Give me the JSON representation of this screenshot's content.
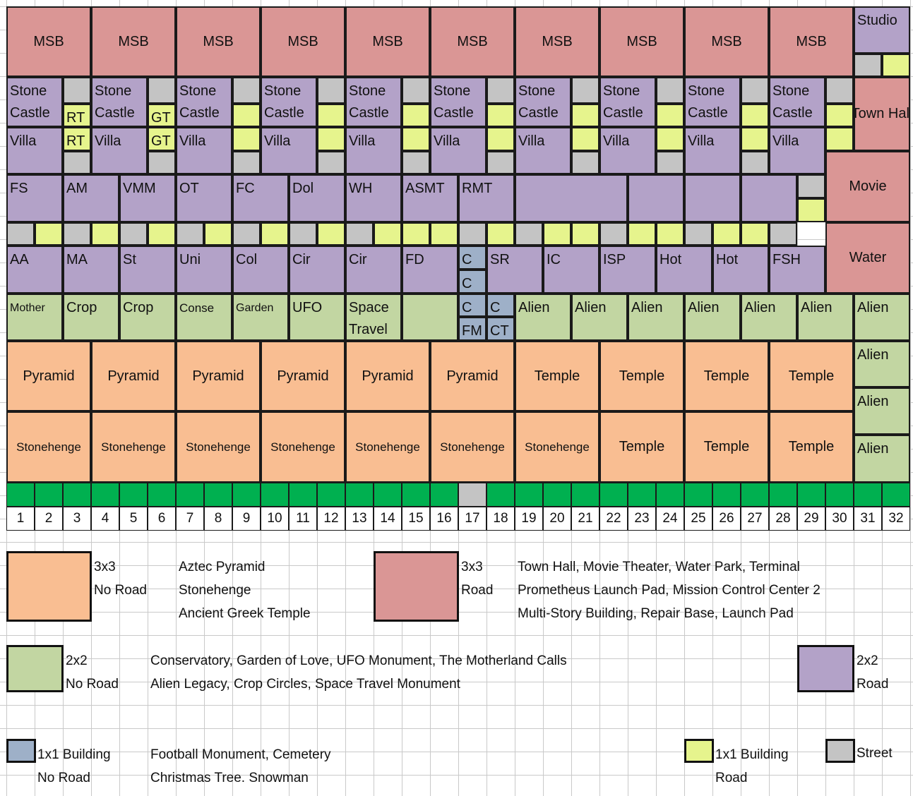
{
  "colors": {
    "orange_3x3_no_road": "#f9be92",
    "red_3x3_road": "#da9695",
    "green_2x2_no_road": "#c2d6a2",
    "purple_2x2_road": "#b3a2c8",
    "blue_1x1_no_road": "#9eb0c8",
    "yellow_1x1_road": "#e6f48d",
    "street_gray": "#c4c4c4",
    "dark_green_row": "#00b050"
  },
  "map": {
    "msb_row": [
      "MSB",
      "MSB",
      "MSB",
      "MSB",
      "MSB",
      "MSB",
      "MSB",
      "MSB",
      "MSB",
      "MSB"
    ],
    "studio": "Studio",
    "stone_castle_label": "Stone\nCastle",
    "villa_label": "Villa",
    "small_tags": {
      "rt": "RT",
      "gt": "GT"
    },
    "town_hall": "Town Hall",
    "row4": [
      "FS",
      "AM",
      "VMM",
      "OT",
      "FC",
      "Dol",
      "WH",
      "ASMT",
      "RMT"
    ],
    "movie": "Movie",
    "row6": [
      "AA",
      "MA",
      "St",
      "Uni",
      "Col",
      "Cir",
      "Cir",
      "FD"
    ],
    "row6_right": [
      "SR",
      "IC",
      "ISP",
      "Hot",
      "Hot",
      "FSH"
    ],
    "water": "Water",
    "cemetery_tag": "C",
    "fm": "FM",
    "ct": "CT",
    "green_row": [
      "Mother",
      "Crop",
      "Crop",
      "Conse",
      "Garden",
      "UFO",
      "Space\nTravel"
    ],
    "alien": "Alien",
    "pyramid": "Pyramid",
    "temple": "Temple",
    "stonehenge": "Stonehenge",
    "column_numbers": [
      1,
      2,
      3,
      4,
      5,
      6,
      7,
      8,
      9,
      10,
      11,
      12,
      13,
      14,
      15,
      16,
      17,
      18,
      19,
      20,
      21,
      22,
      23,
      24,
      25,
      26,
      27,
      28,
      29,
      30,
      31,
      32
    ]
  },
  "legend": {
    "orange": {
      "size": "3x3",
      "road": "No Road",
      "items": [
        "Aztec Pyramid",
        "Stonehenge",
        "Ancient Greek Temple"
      ]
    },
    "red": {
      "size": "3x3",
      "road": "Road",
      "items": [
        "Town Hall, Movie Theater, Water Park, Terminal",
        "Prometheus Launch Pad, Mission Control Center 2",
        "Multi-Story Building, Repair Base, Launch Pad"
      ]
    },
    "green": {
      "size": "2x2",
      "road": "No Road",
      "items": [
        "Conservatory, Garden of Love, UFO Monument, The Motherland Calls",
        "Alien Legacy, Crop Circles, Space Travel Monument"
      ]
    },
    "purple": {
      "size": "2x2",
      "road": "Road"
    },
    "blue": {
      "size": "1x1 Building",
      "road": "No Road",
      "items": [
        "Football Monument, Cemetery",
        "Christmas Tree. Snowman"
      ]
    },
    "yellow": {
      "size": "1x1 Building",
      "road": "Road"
    },
    "street": {
      "label": "Street"
    }
  }
}
